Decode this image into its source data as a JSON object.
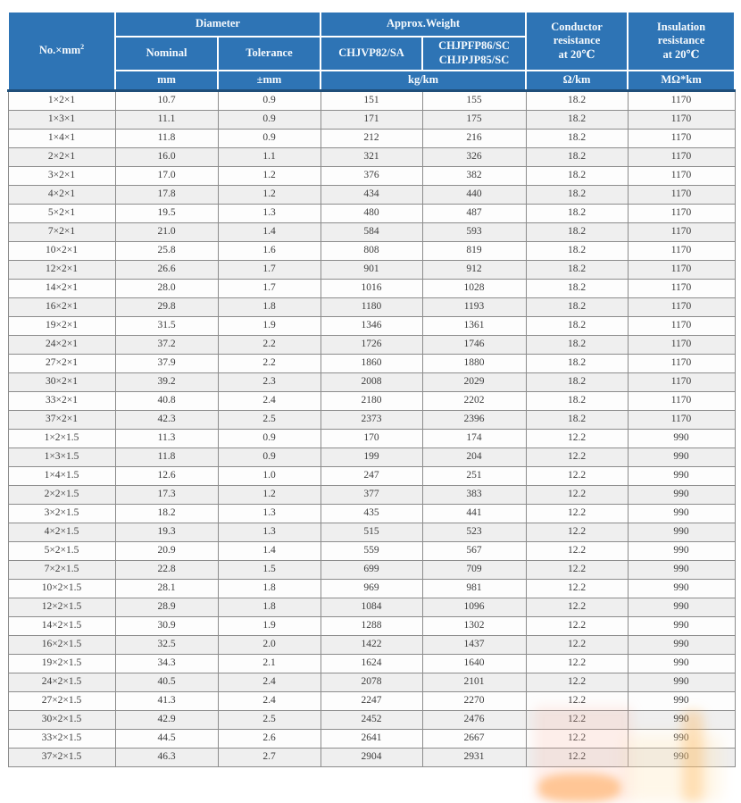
{
  "colors": {
    "header_bg": "#2e74b5",
    "header_text": "#ffffff",
    "header_bottom_line": "#1f4e79",
    "grid_line": "#8c8c8c",
    "row_stripe": "#efefef",
    "body_text": "#3d3d3d",
    "watermark_orange": "#ff8c1e"
  },
  "table": {
    "header": {
      "col_no": "No.×mm",
      "col_no_sup": "2",
      "diameter": "Diameter",
      "nominal": "Nominal",
      "tolerance": "Tolerance",
      "approx_weight": "Approx.Weight",
      "type_a": "CHJVP82/SA",
      "type_b_line1": "CHJPFP86/SC",
      "type_b_line2": "CHJPJP85/SC",
      "conductor_resistance": "Conductor\nresistance\nat 20℃",
      "insulation_resistance": "Insulation\nresistance\nat 20℃",
      "unit_mm": "mm",
      "unit_pm_mm": "±mm",
      "unit_kg_km": "kg/km",
      "unit_ohm_km": "Ω/km",
      "unit_mohm_km": "MΩ*km"
    },
    "rows": [
      [
        "1×2×1",
        "10.7",
        "0.9",
        "151",
        "155",
        "18.2",
        "1170"
      ],
      [
        "1×3×1",
        "11.1",
        "0.9",
        "171",
        "175",
        "18.2",
        "1170"
      ],
      [
        "1×4×1",
        "11.8",
        "0.9",
        "212",
        "216",
        "18.2",
        "1170"
      ],
      [
        "2×2×1",
        "16.0",
        "1.1",
        "321",
        "326",
        "18.2",
        "1170"
      ],
      [
        "3×2×1",
        "17.0",
        "1.2",
        "376",
        "382",
        "18.2",
        "1170"
      ],
      [
        "4×2×1",
        "17.8",
        "1.2",
        "434",
        "440",
        "18.2",
        "1170"
      ],
      [
        "5×2×1",
        "19.5",
        "1.3",
        "480",
        "487",
        "18.2",
        "1170"
      ],
      [
        "7×2×1",
        "21.0",
        "1.4",
        "584",
        "593",
        "18.2",
        "1170"
      ],
      [
        "10×2×1",
        "25.8",
        "1.6",
        "808",
        "819",
        "18.2",
        "1170"
      ],
      [
        "12×2×1",
        "26.6",
        "1.7",
        "901",
        "912",
        "18.2",
        "1170"
      ],
      [
        "14×2×1",
        "28.0",
        "1.7",
        "1016",
        "1028",
        "18.2",
        "1170"
      ],
      [
        "16×2×1",
        "29.8",
        "1.8",
        "1180",
        "1193",
        "18.2",
        "1170"
      ],
      [
        "19×2×1",
        "31.5",
        "1.9",
        "1346",
        "1361",
        "18.2",
        "1170"
      ],
      [
        "24×2×1",
        "37.2",
        "2.2",
        "1726",
        "1746",
        "18.2",
        "1170"
      ],
      [
        "27×2×1",
        "37.9",
        "2.2",
        "1860",
        "1880",
        "18.2",
        "1170"
      ],
      [
        "30×2×1",
        "39.2",
        "2.3",
        "2008",
        "2029",
        "18.2",
        "1170"
      ],
      [
        "33×2×1",
        "40.8",
        "2.4",
        "2180",
        "2202",
        "18.2",
        "1170"
      ],
      [
        "37×2×1",
        "42.3",
        "2.5",
        "2373",
        "2396",
        "18.2",
        "1170"
      ],
      [
        "1×2×1.5",
        "11.3",
        "0.9",
        "170",
        "174",
        "12.2",
        "990"
      ],
      [
        "1×3×1.5",
        "11.8",
        "0.9",
        "199",
        "204",
        "12.2",
        "990"
      ],
      [
        "1×4×1.5",
        "12.6",
        "1.0",
        "247",
        "251",
        "12.2",
        "990"
      ],
      [
        "2×2×1.5",
        "17.3",
        "1.2",
        "377",
        "383",
        "12.2",
        "990"
      ],
      [
        "3×2×1.5",
        "18.2",
        "1.3",
        "435",
        "441",
        "12.2",
        "990"
      ],
      [
        "4×2×1.5",
        "19.3",
        "1.3",
        "515",
        "523",
        "12.2",
        "990"
      ],
      [
        "5×2×1.5",
        "20.9",
        "1.4",
        "559",
        "567",
        "12.2",
        "990"
      ],
      [
        "7×2×1.5",
        "22.8",
        "1.5",
        "699",
        "709",
        "12.2",
        "990"
      ],
      [
        "10×2×1.5",
        "28.1",
        "1.8",
        "969",
        "981",
        "12.2",
        "990"
      ],
      [
        "12×2×1.5",
        "28.9",
        "1.8",
        "1084",
        "1096",
        "12.2",
        "990"
      ],
      [
        "14×2×1.5",
        "30.9",
        "1.9",
        "1288",
        "1302",
        "12.2",
        "990"
      ],
      [
        "16×2×1.5",
        "32.5",
        "2.0",
        "1422",
        "1437",
        "12.2",
        "990"
      ],
      [
        "19×2×1.5",
        "34.3",
        "2.1",
        "1624",
        "1640",
        "12.2",
        "990"
      ],
      [
        "24×2×1.5",
        "40.5",
        "2.4",
        "2078",
        "2101",
        "12.2",
        "990"
      ],
      [
        "27×2×1.5",
        "41.3",
        "2.4",
        "2247",
        "2270",
        "12.2",
        "990"
      ],
      [
        "30×2×1.5",
        "42.9",
        "2.5",
        "2452",
        "2476",
        "12.2",
        "990"
      ],
      [
        "33×2×1.5",
        "44.5",
        "2.6",
        "2641",
        "2667",
        "12.2",
        "990"
      ],
      [
        "37×2×1.5",
        "46.3",
        "2.7",
        "2904",
        "2931",
        "12.2",
        "990"
      ]
    ]
  }
}
